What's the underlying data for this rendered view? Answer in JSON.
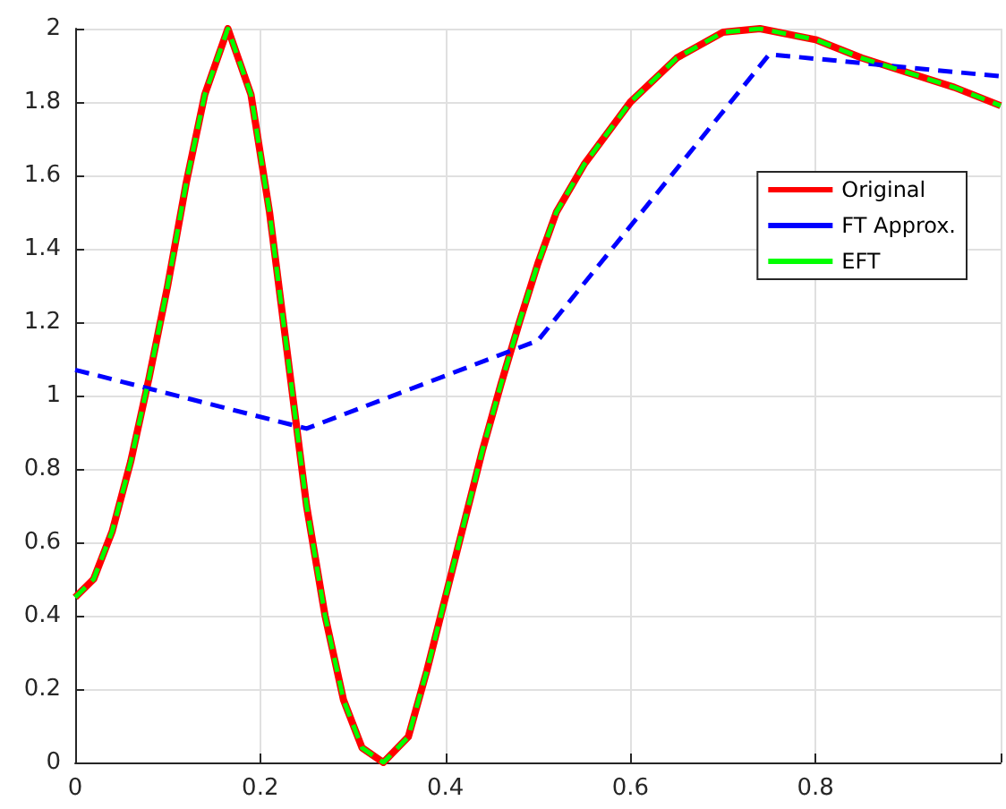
{
  "chart_data": {
    "type": "line",
    "xlim": [
      0,
      1
    ],
    "xticks": [
      0,
      0.2,
      0.4,
      0.6,
      0.8,
      {
        "value": 1,
        "label": null
      }
    ],
    "ylim": [
      0,
      2
    ],
    "yticks": [
      0,
      0.2,
      0.4,
      0.6,
      0.8,
      1,
      1.2,
      1.4,
      1.6,
      1.8,
      2
    ],
    "grid": true,
    "legend": "right",
    "marker": "none",
    "series": [
      {
        "name": "Original",
        "color": "#ff0000",
        "line_style": "solid",
        "x": [
          0,
          0.02,
          0.04,
          0.06,
          0.08,
          0.1,
          0.12,
          0.14,
          0.165,
          0.19,
          0.21,
          0.23,
          0.25,
          0.27,
          0.29,
          0.31,
          0.333,
          0.36,
          0.38,
          0.4,
          0.42,
          0.44,
          0.46,
          0.48,
          0.5,
          0.52,
          0.55,
          0.6,
          0.65,
          0.7,
          0.74,
          0.8,
          0.85,
          0.9,
          0.95,
          1
        ],
        "values": [
          0.45,
          0.5,
          0.63,
          0.82,
          1.05,
          1.3,
          1.58,
          1.82,
          2,
          1.82,
          1.5,
          1.1,
          0.7,
          0.4,
          0.17,
          0.04,
          0,
          0.07,
          0.25,
          0.45,
          0.65,
          0.85,
          1.03,
          1.2,
          1.36,
          1.5,
          1.63,
          1.8,
          1.92,
          1.99,
          2,
          1.97,
          1.92,
          1.88,
          1.84,
          1.79
        ]
      },
      {
        "name": "FT Approx.",
        "color": "#0000ff",
        "line_style": "dashed",
        "x": [
          0,
          0.25,
          0.5,
          0.75,
          1
        ],
        "values": [
          1.07,
          0.91,
          1.15,
          1.93,
          1.87
        ]
      },
      {
        "name": "EFT",
        "color": "#00ff00",
        "line_style": "dashed",
        "x": [
          0,
          0.02,
          0.04,
          0.06,
          0.08,
          0.1,
          0.12,
          0.14,
          0.165,
          0.19,
          0.21,
          0.23,
          0.25,
          0.27,
          0.29,
          0.31,
          0.333,
          0.36,
          0.38,
          0.4,
          0.42,
          0.44,
          0.46,
          0.48,
          0.5,
          0.52,
          0.55,
          0.6,
          0.65,
          0.7,
          0.74,
          0.8,
          0.85,
          0.9,
          0.95,
          1
        ],
        "values": [
          0.45,
          0.5,
          0.63,
          0.82,
          1.05,
          1.3,
          1.58,
          1.82,
          2,
          1.82,
          1.5,
          1.1,
          0.7,
          0.4,
          0.17,
          0.04,
          0,
          0.07,
          0.25,
          0.45,
          0.65,
          0.85,
          1.03,
          1.2,
          1.36,
          1.5,
          1.63,
          1.8,
          1.92,
          1.99,
          2,
          1.97,
          1.92,
          1.88,
          1.84,
          1.79
        ]
      }
    ]
  }
}
